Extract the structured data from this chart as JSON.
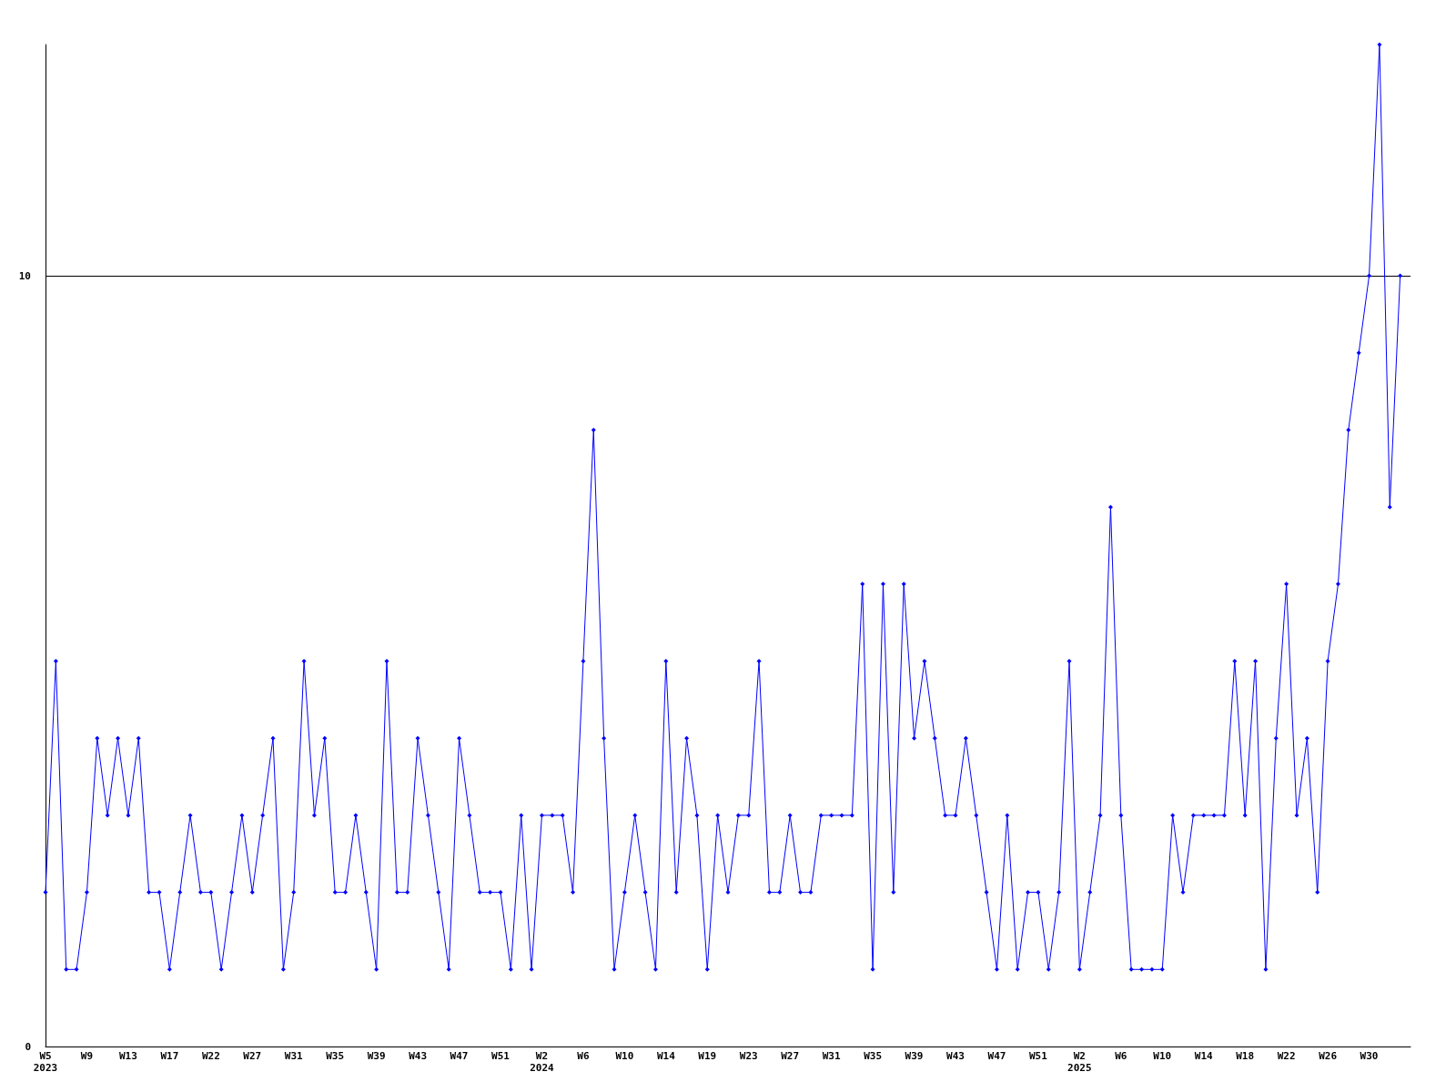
{
  "chart_data": {
    "type": "line",
    "categories": [
      "W5\n2023",
      null,
      null,
      null,
      "W9",
      null,
      null,
      null,
      "W13",
      null,
      null,
      null,
      "W17",
      null,
      null,
      null,
      "W22",
      null,
      null,
      null,
      "W27",
      null,
      null,
      null,
      "W31",
      null,
      null,
      null,
      "W35",
      null,
      null,
      null,
      "W39",
      null,
      null,
      null,
      "W43",
      null,
      null,
      null,
      "W47",
      null,
      null,
      null,
      "W51",
      null,
      null,
      null,
      "W2\n2024",
      null,
      null,
      null,
      "W6",
      null,
      null,
      null,
      "W10",
      null,
      null,
      null,
      "W14",
      null,
      null,
      null,
      "W19",
      null,
      null,
      null,
      "W23",
      null,
      null,
      null,
      "W27",
      null,
      null,
      null,
      "W31",
      null,
      null,
      null,
      "W35",
      null,
      null,
      null,
      "W39",
      null,
      null,
      null,
      "W43",
      null,
      null,
      null,
      "W47",
      null,
      null,
      null,
      "W51",
      null,
      null,
      null,
      "W2\n2025",
      null,
      null,
      null,
      "W6",
      null,
      null,
      null,
      "W10",
      null,
      null,
      null,
      "W14",
      null,
      null,
      null,
      "W18",
      null,
      null,
      null,
      "W22",
      null,
      null,
      null,
      "W26",
      null,
      null,
      null,
      "W30",
      null,
      null,
      null,
      null
    ],
    "series": [
      {
        "color": "#0000ff",
        "values": [
          2,
          5,
          1,
          1,
          2,
          4,
          3,
          4,
          3,
          4,
          2,
          2,
          1,
          2,
          3,
          2,
          2,
          1,
          2,
          3,
          2,
          3,
          4,
          1,
          2,
          5,
          3,
          4,
          2,
          2,
          3,
          2,
          1,
          5,
          2,
          2,
          4,
          3,
          2,
          1,
          4,
          3,
          2,
          2,
          2,
          1,
          3,
          1,
          3,
          3,
          3,
          2,
          5,
          8,
          4,
          1,
          2,
          3,
          2,
          1,
          5,
          2,
          4,
          3,
          1,
          3,
          2,
          3,
          3,
          5,
          2,
          2,
          3,
          2,
          2,
          3,
          3,
          3,
          3,
          6,
          1,
          6,
          2,
          6,
          4,
          5,
          4,
          3,
          3,
          4,
          3,
          2,
          1,
          3,
          1,
          2,
          2,
          1,
          2,
          5,
          1,
          2,
          3,
          7,
          3,
          1,
          1,
          1,
          1,
          3,
          2,
          3,
          3,
          3,
          3,
          5,
          3,
          5,
          1,
          4,
          6,
          3,
          4,
          2,
          5,
          6,
          8,
          9,
          10,
          13,
          7,
          10,
          null
        ]
      }
    ],
    "ylim": [
      0,
      13
    ],
    "yticks": [
      0,
      10
    ],
    "grid": "y",
    "marker": "diamond",
    "line_style": "solid"
  }
}
